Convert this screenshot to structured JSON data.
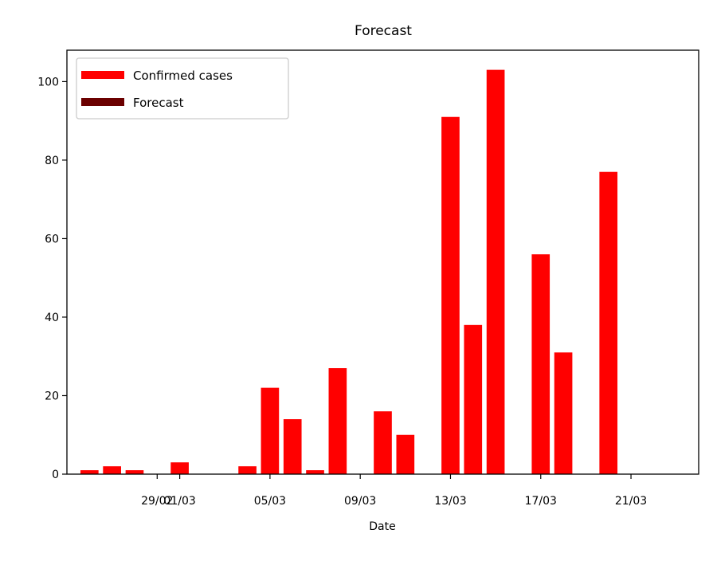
{
  "chart_data": {
    "type": "bar",
    "title": "Forecast",
    "xlabel": "Date",
    "ylabel": "",
    "x_type": "date",
    "xlim": [
      "2020-02-25",
      "2020-03-24"
    ],
    "ylim": [
      0,
      108
    ],
    "yticks": [
      0,
      20,
      40,
      60,
      80,
      100
    ],
    "xticks": [
      {
        "date": "2020-02-29",
        "label": "29/02"
      },
      {
        "date": "2020-03-01",
        "label": "01/03"
      },
      {
        "date": "2020-03-05",
        "label": "05/03"
      },
      {
        "date": "2020-03-09",
        "label": "09/03"
      },
      {
        "date": "2020-03-13",
        "label": "13/03"
      },
      {
        "date": "2020-03-17",
        "label": "17/03"
      },
      {
        "date": "2020-03-21",
        "label": "21/03"
      }
    ],
    "grid": false,
    "legend": {
      "placement": "top-left"
    },
    "series": [
      {
        "name": "Confirmed cases",
        "color": "#ff0000",
        "points": [
          {
            "date": "2020-02-26",
            "value": 1
          },
          {
            "date": "2020-02-27",
            "value": 2
          },
          {
            "date": "2020-02-28",
            "value": 1
          },
          {
            "date": "2020-02-29",
            "value": 0
          },
          {
            "date": "2020-03-01",
            "value": 3
          },
          {
            "date": "2020-03-02",
            "value": 0
          },
          {
            "date": "2020-03-03",
            "value": 0
          },
          {
            "date": "2020-03-04",
            "value": 2
          },
          {
            "date": "2020-03-05",
            "value": 22
          },
          {
            "date": "2020-03-06",
            "value": 14
          },
          {
            "date": "2020-03-07",
            "value": 1
          },
          {
            "date": "2020-03-08",
            "value": 27
          },
          {
            "date": "2020-03-09",
            "value": 0
          },
          {
            "date": "2020-03-10",
            "value": 16
          },
          {
            "date": "2020-03-11",
            "value": 10
          },
          {
            "date": "2020-03-12",
            "value": 0
          },
          {
            "date": "2020-03-13",
            "value": 91
          },
          {
            "date": "2020-03-14",
            "value": 38
          },
          {
            "date": "2020-03-15",
            "value": 103
          },
          {
            "date": "2020-03-16",
            "value": 0
          },
          {
            "date": "2020-03-17",
            "value": 56
          },
          {
            "date": "2020-03-18",
            "value": 31
          },
          {
            "date": "2020-03-19",
            "value": 0
          },
          {
            "date": "2020-03-20",
            "value": 77
          },
          {
            "date": "2020-03-21",
            "value": 0
          },
          {
            "date": "2020-03-22",
            "value": 0
          },
          {
            "date": "2020-03-23",
            "value": 0
          }
        ]
      },
      {
        "name": "Forecast",
        "color": "#6b0000",
        "points": []
      }
    ]
  }
}
